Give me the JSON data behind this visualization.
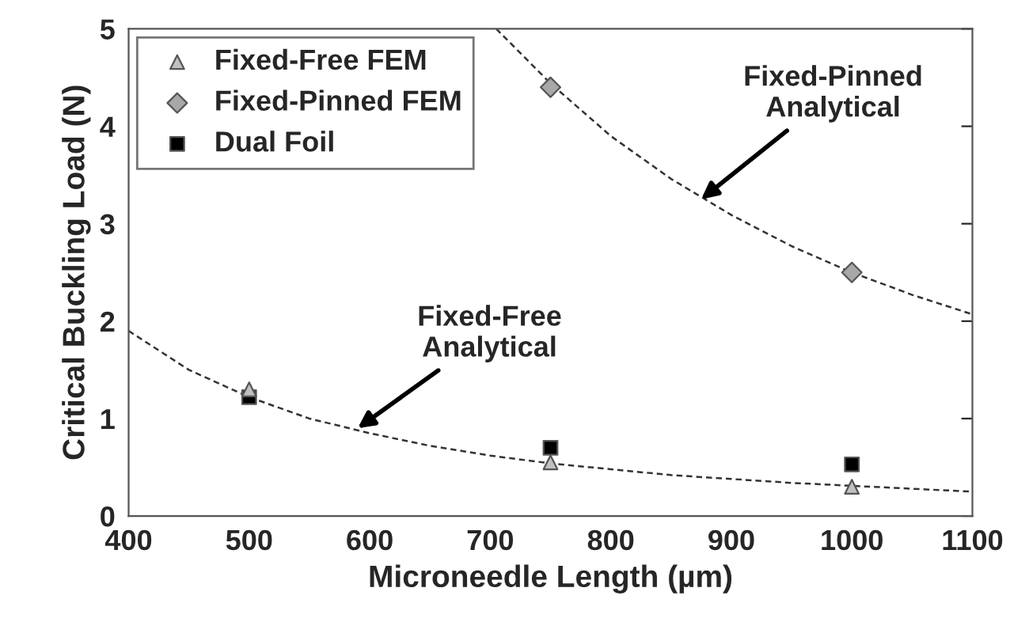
{
  "chart_data": {
    "type": "scatter",
    "xlabel": "Microneedle Length (µm)",
    "ylabel": "Critical Buckling Load (N)",
    "xlim": [
      400,
      1100
    ],
    "xticks": [
      400,
      500,
      600,
      700,
      800,
      900,
      1000,
      1100
    ],
    "ylim": [
      0,
      5
    ],
    "yticks": [
      0,
      1,
      2,
      3,
      4,
      5
    ],
    "grid": false,
    "legend": "top left",
    "series": [
      {
        "name": "Fixed-Free FEM",
        "marker": "triangle",
        "color": "#c0c0c0",
        "x": [
          500,
          750,
          1000
        ],
        "values": [
          1.3,
          0.55,
          0.3
        ]
      },
      {
        "name": "Fixed-Pinned FEM",
        "marker": "diamond",
        "color": "#a8a8a8",
        "x": [
          750,
          1000
        ],
        "values": [
          4.4,
          2.5
        ]
      },
      {
        "name": "Dual Foil",
        "marker": "square",
        "color": "#000000",
        "x": [
          500,
          750,
          1000
        ],
        "values": [
          1.22,
          0.7,
          0.53
        ]
      },
      {
        "type": "line",
        "marker": "none",
        "line_style": "dashed",
        "color": "#333333",
        "x": [
          400,
          450,
          500,
          550,
          600,
          650,
          700,
          750,
          800,
          850,
          900,
          950,
          1000,
          1050,
          1100
        ],
        "values": [
          1.9,
          1.5,
          1.22,
          1.0,
          0.85,
          0.72,
          0.62,
          0.54,
          0.48,
          0.42,
          0.38,
          0.34,
          0.31,
          0.28,
          0.25
        ]
      },
      {
        "type": "line",
        "marker": "none",
        "line_style": "dashed",
        "color": "#333333",
        "x": [
          705,
          750,
          800,
          850,
          900,
          950,
          1000,
          1050,
          1100
        ],
        "values": [
          5.0,
          4.44,
          3.9,
          3.46,
          3.09,
          2.77,
          2.5,
          2.27,
          2.07
        ]
      }
    ],
    "annotations": [
      {
        "text": "Fixed-Pinned\nAnalytical",
        "x": 875,
        "y": 3.25
      },
      {
        "text": "Fixed-Free\nAnalytical",
        "x": 590,
        "y": 0.9
      }
    ]
  }
}
